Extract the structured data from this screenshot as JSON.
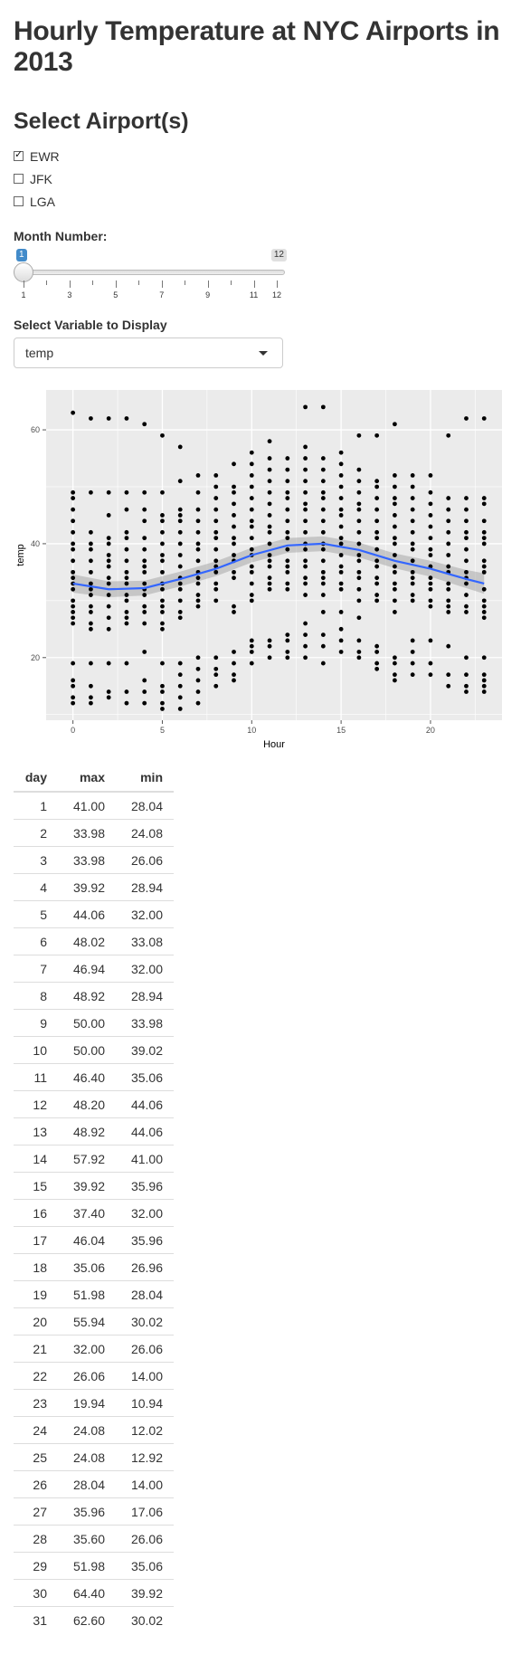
{
  "page_title": "Hourly Temperature at NYC Airports in 2013",
  "airports": {
    "heading": "Select Airport(s)",
    "options": [
      {
        "label": "EWR",
        "checked": true
      },
      {
        "label": "JFK",
        "checked": false
      },
      {
        "label": "LGA",
        "checked": false
      }
    ]
  },
  "month": {
    "label": "Month Number:",
    "value": "1",
    "max_label": "12",
    "min": 1,
    "max": 12,
    "tick_labels": [
      "1",
      "3",
      "5",
      "7",
      "9",
      "11",
      "12"
    ]
  },
  "variable": {
    "label": "Select Variable to Display",
    "selected": "temp"
  },
  "colors": {
    "panel_bg": "#ebebeb",
    "grid": "#ffffff",
    "point": "#000000",
    "smooth_line": "#3366ff",
    "ribbon": "#999999"
  },
  "chart_data": {
    "type": "scatter",
    "xlabel": "Hour",
    "ylabel": "temp",
    "xlim": [
      -1.5,
      24
    ],
    "ylim": [
      9,
      67
    ],
    "x_ticks": [
      "0",
      "5",
      "10",
      "15",
      "20"
    ],
    "x_tick_values": [
      0,
      5,
      10,
      15,
      20
    ],
    "y_ticks": [
      "20",
      "40",
      "60"
    ],
    "y_tick_values": [
      20,
      40,
      60
    ],
    "grid": true,
    "smooth": {
      "x": [
        0,
        2,
        4,
        6,
        8,
        10,
        12,
        14,
        16,
        18,
        20,
        22,
        23
      ],
      "y": [
        33.0,
        32.0,
        32.2,
        33.8,
        35.6,
        38.0,
        39.7,
        40.0,
        38.9,
        37.0,
        35.6,
        33.8,
        33.0
      ],
      "se": [
        1.6,
        1.4,
        1.3,
        1.3,
        1.3,
        1.3,
        1.3,
        1.3,
        1.3,
        1.3,
        1.4,
        1.6,
        1.8
      ]
    },
    "series": [
      {
        "x": 0,
        "y": [
          63,
          49,
          48,
          46,
          44,
          42,
          40,
          39,
          37,
          35,
          34,
          33,
          32,
          30,
          29,
          28,
          27,
          26,
          19,
          16,
          15,
          13,
          12
        ]
      },
      {
        "x": 1,
        "y": [
          62,
          49,
          42,
          40,
          39,
          37,
          35,
          33,
          32,
          31,
          29,
          28,
          26,
          25,
          19,
          15,
          13,
          12
        ]
      },
      {
        "x": 2,
        "y": [
          62,
          49,
          45,
          41,
          40,
          38,
          37,
          36,
          34,
          33,
          31,
          29,
          27,
          25,
          19,
          14,
          13
        ]
      },
      {
        "x": 3,
        "y": [
          62,
          49,
          46,
          42,
          41,
          39,
          37,
          35,
          34,
          33,
          31,
          30,
          28,
          27,
          26,
          19,
          14,
          12
        ]
      },
      {
        "x": 4,
        "y": [
          61,
          49,
          46,
          44,
          41,
          39,
          37,
          36,
          35,
          33,
          32,
          31,
          29,
          28,
          26,
          21,
          16,
          14,
          12
        ]
      },
      {
        "x": 5,
        "y": [
          59,
          49,
          45,
          44,
          42,
          40,
          38,
          37,
          35,
          33,
          32,
          30,
          29,
          28,
          26,
          25,
          19,
          15,
          14,
          12,
          11
        ]
      },
      {
        "x": 6,
        "y": [
          57,
          51,
          46,
          45,
          44,
          42,
          40,
          38,
          36,
          34,
          33,
          32,
          30,
          28,
          27,
          19,
          17,
          15,
          13,
          11
        ]
      },
      {
        "x": 7,
        "y": [
          52,
          49,
          46,
          44,
          42,
          40,
          39,
          37,
          35,
          34,
          33,
          31,
          30,
          29,
          20,
          18,
          16,
          14,
          12
        ]
      },
      {
        "x": 8,
        "y": [
          52,
          50,
          48,
          46,
          44,
          42,
          41,
          39,
          37,
          36,
          35,
          33,
          32,
          30,
          20,
          18,
          17,
          15
        ]
      },
      {
        "x": 9,
        "y": [
          54,
          50,
          49,
          47,
          45,
          43,
          41,
          40,
          38,
          37,
          35,
          34,
          29,
          28,
          21,
          19,
          17,
          16
        ]
      },
      {
        "x": 10,
        "y": [
          56,
          54,
          52,
          50,
          48,
          46,
          44,
          43,
          41,
          39,
          38,
          36,
          35,
          33,
          31,
          30,
          23,
          22,
          21,
          19
        ]
      },
      {
        "x": 11,
        "y": [
          58,
          55,
          53,
          51,
          49,
          47,
          45,
          43,
          42,
          40,
          38,
          37,
          36,
          34,
          33,
          32,
          23,
          22,
          20
        ]
      },
      {
        "x": 12,
        "y": [
          55,
          53,
          51,
          49,
          48,
          46,
          44,
          42,
          41,
          39,
          37,
          36,
          35,
          33,
          32,
          24,
          23,
          21,
          20
        ]
      },
      {
        "x": 13,
        "y": [
          64,
          57,
          55,
          53,
          51,
          49,
          47,
          46,
          44,
          42,
          40,
          39,
          37,
          36,
          34,
          33,
          31,
          26,
          24,
          22,
          20
        ]
      },
      {
        "x": 14,
        "y": [
          64,
          55,
          53,
          51,
          49,
          48,
          46,
          44,
          42,
          40,
          39,
          37,
          35,
          34,
          33,
          31,
          28,
          24,
          22,
          19
        ]
      },
      {
        "x": 15,
        "y": [
          56,
          54,
          52,
          50,
          48,
          46,
          45,
          43,
          41,
          40,
          38,
          36,
          35,
          33,
          32,
          28,
          25,
          23,
          21
        ]
      },
      {
        "x": 16,
        "y": [
          59,
          53,
          51,
          49,
          47,
          46,
          44,
          42,
          40,
          38,
          37,
          35,
          34,
          32,
          30,
          27,
          23,
          21,
          20
        ]
      },
      {
        "x": 17,
        "y": [
          59,
          51,
          50,
          48,
          46,
          44,
          42,
          41,
          39,
          37,
          36,
          34,
          33,
          31,
          30,
          22,
          21,
          19,
          18
        ]
      },
      {
        "x": 18,
        "y": [
          61,
          52,
          50,
          48,
          47,
          45,
          43,
          41,
          40,
          38,
          36,
          35,
          33,
          32,
          30,
          28,
          20,
          19,
          17,
          16
        ]
      },
      {
        "x": 19,
        "y": [
          52,
          50,
          48,
          46,
          44,
          42,
          40,
          39,
          37,
          35,
          34,
          33,
          31,
          30,
          23,
          21,
          19,
          17
        ]
      },
      {
        "x": 20,
        "y": [
          52,
          49,
          47,
          45,
          43,
          41,
          39,
          38,
          36,
          34,
          33,
          32,
          30,
          29,
          23,
          19,
          17
        ]
      },
      {
        "x": 21,
        "y": [
          59,
          48,
          46,
          44,
          42,
          40,
          38,
          36,
          35,
          33,
          32,
          30,
          29,
          28,
          22,
          17,
          15
        ]
      },
      {
        "x": 22,
        "y": [
          62,
          48,
          46,
          44,
          42,
          41,
          39,
          37,
          35,
          34,
          33,
          31,
          29,
          28,
          20,
          17,
          15,
          14
        ]
      },
      {
        "x": 23,
        "y": [
          62,
          48,
          47,
          44,
          42,
          41,
          40,
          37,
          36,
          35,
          32,
          30,
          29,
          28,
          27,
          20,
          17,
          16,
          15,
          14
        ]
      }
    ]
  },
  "table": {
    "headers": [
      "day",
      "max",
      "min"
    ],
    "rows": [
      [
        "1",
        "41.00",
        "28.04"
      ],
      [
        "2",
        "33.98",
        "24.08"
      ],
      [
        "3",
        "33.98",
        "26.06"
      ],
      [
        "4",
        "39.92",
        "28.94"
      ],
      [
        "5",
        "44.06",
        "32.00"
      ],
      [
        "6",
        "48.02",
        "33.08"
      ],
      [
        "7",
        "46.94",
        "32.00"
      ],
      [
        "8",
        "48.92",
        "28.94"
      ],
      [
        "9",
        "50.00",
        "33.98"
      ],
      [
        "10",
        "50.00",
        "39.02"
      ],
      [
        "11",
        "46.40",
        "35.06"
      ],
      [
        "12",
        "48.20",
        "44.06"
      ],
      [
        "13",
        "48.92",
        "44.06"
      ],
      [
        "14",
        "57.92",
        "41.00"
      ],
      [
        "15",
        "39.92",
        "35.96"
      ],
      [
        "16",
        "37.40",
        "32.00"
      ],
      [
        "17",
        "46.04",
        "35.96"
      ],
      [
        "18",
        "35.06",
        "26.96"
      ],
      [
        "19",
        "51.98",
        "28.04"
      ],
      [
        "20",
        "55.94",
        "30.02"
      ],
      [
        "21",
        "32.00",
        "26.06"
      ],
      [
        "22",
        "26.06",
        "14.00"
      ],
      [
        "23",
        "19.94",
        "10.94"
      ],
      [
        "24",
        "24.08",
        "12.02"
      ],
      [
        "25",
        "24.08",
        "12.92"
      ],
      [
        "26",
        "28.04",
        "14.00"
      ],
      [
        "27",
        "35.96",
        "17.06"
      ],
      [
        "28",
        "35.60",
        "26.06"
      ],
      [
        "29",
        "51.98",
        "35.06"
      ],
      [
        "30",
        "64.40",
        "39.92"
      ],
      [
        "31",
        "62.60",
        "30.02"
      ]
    ]
  }
}
